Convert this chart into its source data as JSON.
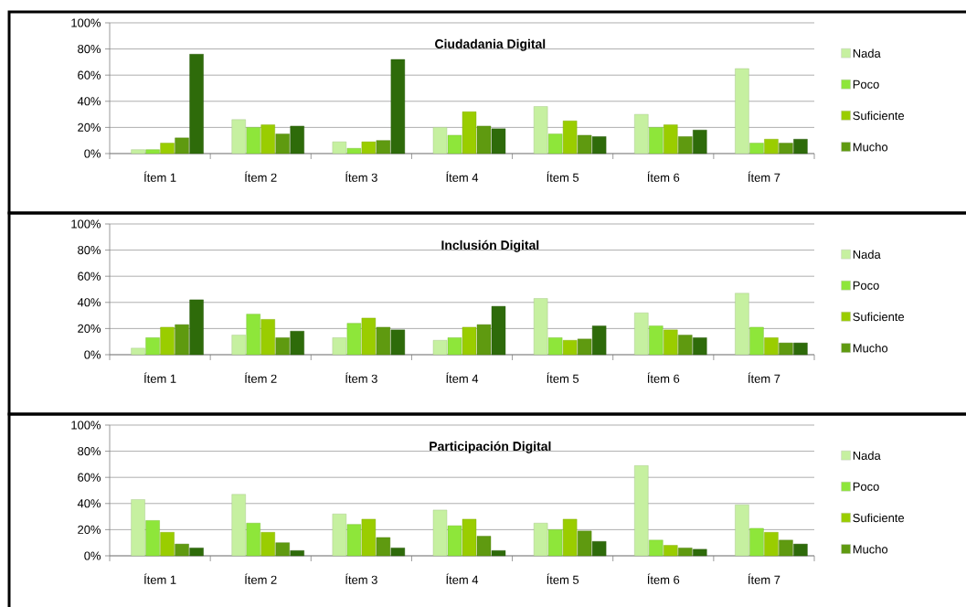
{
  "chart_data": [
    {
      "type": "bar",
      "title": "Ciudadania Digital",
      "categories": [
        "Ítem 1",
        "Ítem 2",
        "Ítem 3",
        "Ítem 4",
        "Ítem 5",
        "Ítem 6",
        "Ítem 7"
      ],
      "series": [
        {
          "name": "Nada",
          "color": "#c6f0a0",
          "values": [
            3,
            26,
            9,
            20,
            36,
            30,
            65
          ]
        },
        {
          "name": "Poco",
          "color": "#8ee63a",
          "values": [
            3,
            20,
            4,
            14,
            15,
            20,
            8
          ]
        },
        {
          "name": "Suficiente",
          "color": "#9acd00",
          "values": [
            8,
            22,
            9,
            32,
            25,
            22,
            11
          ]
        },
        {
          "name": "Mucho",
          "color": "#5f9a10",
          "values": [
            12,
            15,
            10,
            21,
            14,
            13,
            8
          ]
        },
        {
          "color": "#2e6b0a",
          "values": [
            76,
            21,
            72,
            19,
            13,
            18,
            11
          ]
        }
      ],
      "ylim": [
        0,
        100
      ],
      "yticks": [
        {
          "value": 0,
          "label": "0%"
        },
        {
          "value": 20,
          "label": "20%"
        },
        {
          "value": 40,
          "label": "40%"
        },
        {
          "value": 60,
          "label": "60%"
        },
        {
          "value": 80,
          "label": "80%"
        },
        {
          "value": 100,
          "label": "100%"
        }
      ],
      "grid": "y",
      "legend": "right"
    },
    {
      "type": "bar",
      "title": "Inclusión Digital",
      "categories": [
        "Ítem 1",
        "Ítem 2",
        "Ítem 3",
        "Ítem 4",
        "Ítem 5",
        "Ítem 6",
        "Ítem 7"
      ],
      "series": [
        {
          "name": "Nada",
          "color": "#c6f0a0",
          "values": [
            5,
            15,
            13,
            11,
            43,
            32,
            47
          ]
        },
        {
          "name": "Poco",
          "color": "#8ee63a",
          "values": [
            13,
            31,
            24,
            13,
            13,
            22,
            21
          ]
        },
        {
          "name": "Suficiente",
          "color": "#9acd00",
          "values": [
            21,
            27,
            28,
            21,
            11,
            19,
            13
          ]
        },
        {
          "name": "Mucho",
          "color": "#5f9a10",
          "values": [
            23,
            13,
            21,
            23,
            12,
            15,
            9
          ]
        },
        {
          "color": "#2e6b0a",
          "values": [
            42,
            18,
            19,
            37,
            22,
            13,
            9
          ]
        }
      ],
      "ylim": [
        0,
        100
      ],
      "yticks": [
        {
          "value": 0,
          "label": "0%"
        },
        {
          "value": 20,
          "label": "20%"
        },
        {
          "value": 40,
          "label": "40%"
        },
        {
          "value": 60,
          "label": "60%"
        },
        {
          "value": 80,
          "label": "80%"
        },
        {
          "value": 100,
          "label": "100%"
        }
      ],
      "grid": "y",
      "legend": "right"
    },
    {
      "type": "bar",
      "title": "Participación Digital",
      "categories": [
        "Ítem 1",
        "Ítem 2",
        "Ítem 3",
        "Ítem 4",
        "Ítem 5",
        "Ítem 6",
        "Ítem 7"
      ],
      "series": [
        {
          "name": "Nada",
          "color": "#c6f0a0",
          "values": [
            43,
            47,
            32,
            35,
            25,
            69,
            39
          ]
        },
        {
          "name": "Poco",
          "color": "#8ee63a",
          "values": [
            27,
            25,
            24,
            23,
            20,
            12,
            21
          ]
        },
        {
          "name": "Suficiente",
          "color": "#9acd00",
          "values": [
            18,
            18,
            28,
            28,
            28,
            8,
            18
          ]
        },
        {
          "name": "Mucho",
          "color": "#5f9a10",
          "values": [
            9,
            10,
            14,
            15,
            19,
            6,
            12
          ]
        },
        {
          "color": "#2e6b0a",
          "values": [
            6,
            4,
            6,
            4,
            11,
            5,
            9
          ]
        }
      ],
      "ylim": [
        0,
        100
      ],
      "yticks": [
        {
          "value": 0,
          "label": "0%"
        },
        {
          "value": 20,
          "label": "20%"
        },
        {
          "value": 40,
          "label": "40%"
        },
        {
          "value": 60,
          "label": "60%"
        },
        {
          "value": 80,
          "label": "80%"
        },
        {
          "value": 100,
          "label": "100%"
        }
      ],
      "grid": "y",
      "legend": "right"
    }
  ]
}
